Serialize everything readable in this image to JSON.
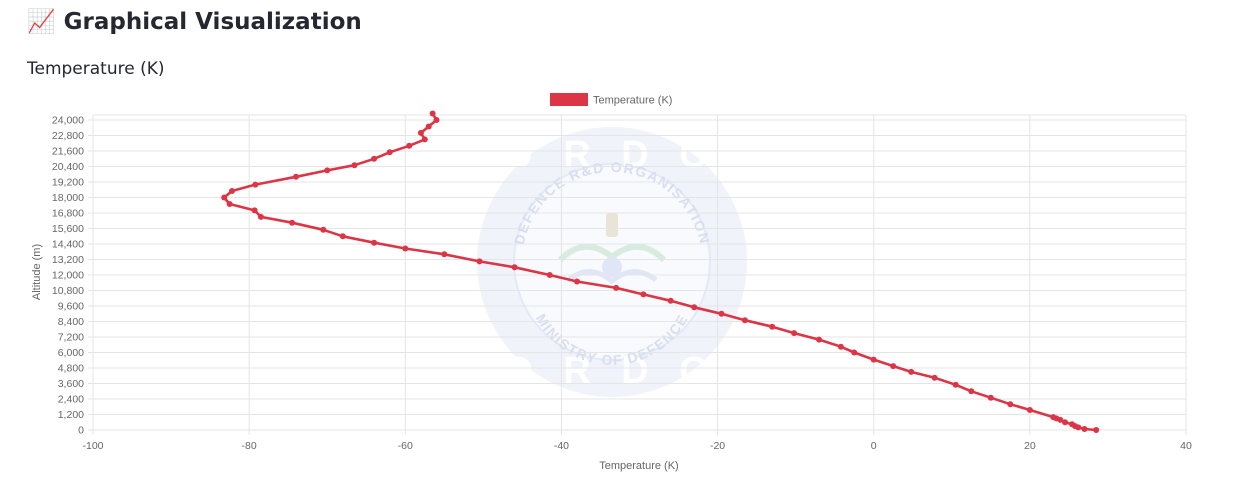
{
  "page": {
    "heading_icon": "📈",
    "heading_icon_name": "chart-increasing-icon",
    "heading": "Graphical Visualization",
    "chart_heading": "Temperature (K)"
  },
  "watermark": {
    "top_text": "D R D O",
    "ring_top": "DEFENCE R&D ORGANISATION",
    "ring_bottom": "MINISTRY OF DEFENCE",
    "bottom_text": "D R D O"
  },
  "colors": {
    "series": "#dc3545",
    "grid": "#e5e5e5",
    "axis_text": "#666666",
    "watermark": "#cfd8f2"
  },
  "chart_data": {
    "type": "line",
    "title": "",
    "xlabel": "Temperature (K)",
    "ylabel": "Altitude (m)",
    "xlim": [
      -100,
      40
    ],
    "ylim": [
      0,
      24000
    ],
    "x_ticks": [
      -100,
      -80,
      -60,
      -40,
      -20,
      0,
      20,
      40
    ],
    "x_tick_labels": [
      "-100",
      "-80",
      "-60",
      "-40",
      "-20",
      "0",
      "20",
      "40"
    ],
    "y_ticks": [
      0,
      1200,
      2400,
      3600,
      4800,
      6000,
      7200,
      8400,
      9600,
      10800,
      12000,
      13200,
      14400,
      15600,
      16800,
      18000,
      19200,
      20400,
      21600,
      22800,
      24000
    ],
    "y_tick_labels": [
      "0",
      "1,200",
      "2,400",
      "3,600",
      "4,800",
      "6,000",
      "7,200",
      "8,400",
      "9,600",
      "10,800",
      "12,000",
      "13,200",
      "14,400",
      "15,600",
      "16,800",
      "18,000",
      "19,200",
      "20,400",
      "21,600",
      "22,800",
      "24,000"
    ],
    "grid": true,
    "legend_position": "top",
    "series": [
      {
        "name": "Temperature (K)",
        "color": "#dc3545",
        "points": [
          {
            "x": 28.5,
            "y": 0
          },
          {
            "x": 27.0,
            "y": 80
          },
          {
            "x": 26.2,
            "y": 200
          },
          {
            "x": 25.8,
            "y": 300
          },
          {
            "x": 25.4,
            "y": 450
          },
          {
            "x": 24.5,
            "y": 600
          },
          {
            "x": 23.9,
            "y": 780
          },
          {
            "x": 23.4,
            "y": 900
          },
          {
            "x": 23.0,
            "y": 1000
          },
          {
            "x": 20.0,
            "y": 1550
          },
          {
            "x": 17.5,
            "y": 2000
          },
          {
            "x": 15.0,
            "y": 2500
          },
          {
            "x": 12.5,
            "y": 3000
          },
          {
            "x": 10.5,
            "y": 3500
          },
          {
            "x": 7.8,
            "y": 4050
          },
          {
            "x": 4.8,
            "y": 4500
          },
          {
            "x": 2.5,
            "y": 4950
          },
          {
            "x": 0.0,
            "y": 5450
          },
          {
            "x": -2.5,
            "y": 6000
          },
          {
            "x": -4.2,
            "y": 6450
          },
          {
            "x": -7.0,
            "y": 7000
          },
          {
            "x": -10.2,
            "y": 7500
          },
          {
            "x": -13.0,
            "y": 8000
          },
          {
            "x": -16.5,
            "y": 8500
          },
          {
            "x": -19.5,
            "y": 9000
          },
          {
            "x": -23.0,
            "y": 9500
          },
          {
            "x": -26.0,
            "y": 10000
          },
          {
            "x": -29.5,
            "y": 10500
          },
          {
            "x": -33.0,
            "y": 11000
          },
          {
            "x": -38.0,
            "y": 11500
          },
          {
            "x": -41.5,
            "y": 12000
          },
          {
            "x": -46.0,
            "y": 12600
          },
          {
            "x": -50.5,
            "y": 13050
          },
          {
            "x": -55.0,
            "y": 13600
          },
          {
            "x": -60.0,
            "y": 14050
          },
          {
            "x": -64.0,
            "y": 14500
          },
          {
            "x": -68.0,
            "y": 15000
          },
          {
            "x": -70.5,
            "y": 15500
          },
          {
            "x": -74.5,
            "y": 16050
          },
          {
            "x": -78.5,
            "y": 16500
          },
          {
            "x": -79.3,
            "y": 17000
          },
          {
            "x": -82.5,
            "y": 17500
          },
          {
            "x": -83.2,
            "y": 18000
          },
          {
            "x": -82.2,
            "y": 18500
          },
          {
            "x": -79.2,
            "y": 19000
          },
          {
            "x": -74.0,
            "y": 19600
          },
          {
            "x": -70.0,
            "y": 20100
          },
          {
            "x": -66.5,
            "y": 20500
          },
          {
            "x": -64.0,
            "y": 21000
          },
          {
            "x": -62.0,
            "y": 21500
          },
          {
            "x": -59.5,
            "y": 22000
          },
          {
            "x": -57.5,
            "y": 22500
          },
          {
            "x": -58.0,
            "y": 23000
          },
          {
            "x": -57.0,
            "y": 23500
          },
          {
            "x": -56.0,
            "y": 24000
          },
          {
            "x": -56.5,
            "y": 24500
          }
        ]
      }
    ]
  }
}
